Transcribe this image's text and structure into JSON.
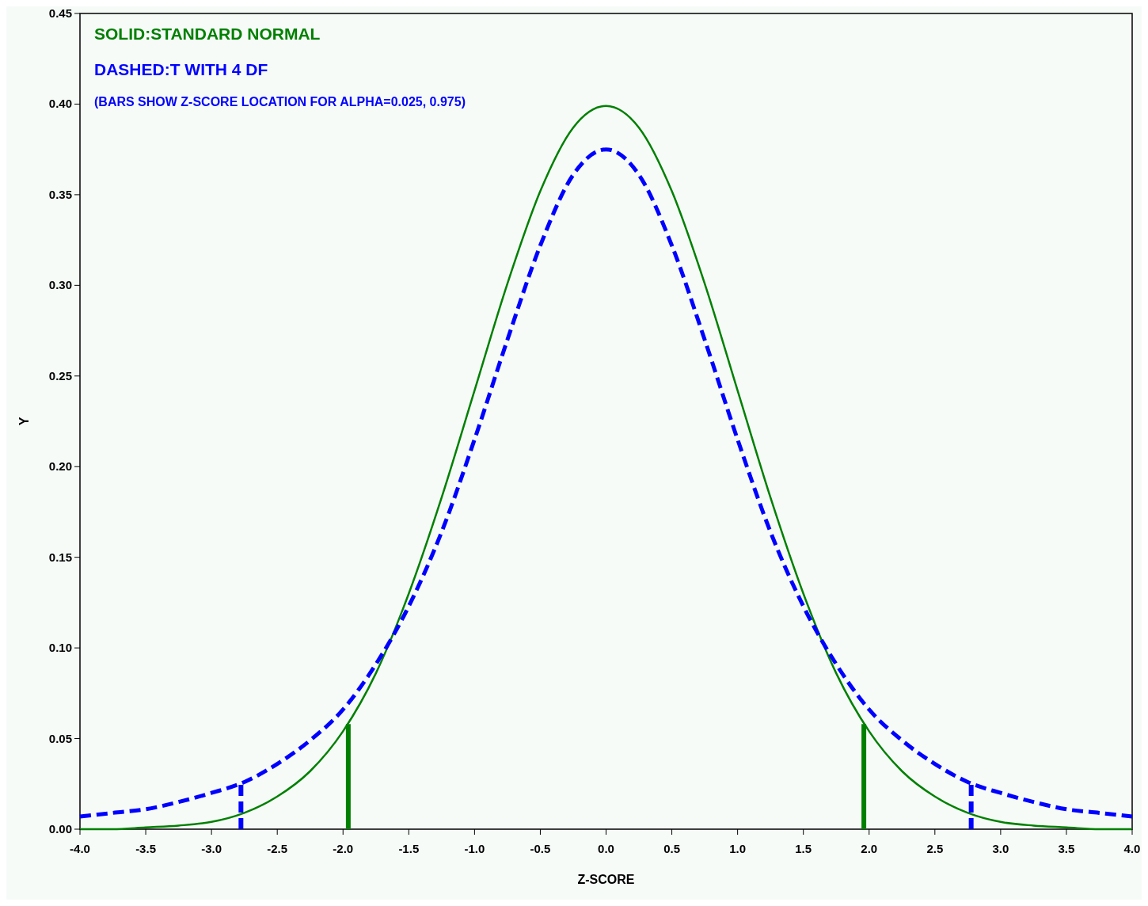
{
  "chart_data": {
    "type": "line",
    "xlabel": "Z-SCORE",
    "ylabel": "Y",
    "xlim": [
      -4,
      4
    ],
    "ylim": [
      0,
      0.45
    ],
    "xticks": [
      {
        "value": -4,
        "label": "-4.0"
      },
      {
        "value": -3.5,
        "label": "-3.5"
      },
      {
        "value": -3,
        "label": "-3.0"
      },
      {
        "value": -2.5,
        "label": "-2.5"
      },
      {
        "value": -2,
        "label": "-2.0"
      },
      {
        "value": -1.5,
        "label": "-1.5"
      },
      {
        "value": -1,
        "label": "-1.0"
      },
      {
        "value": -0.5,
        "label": "-0.5"
      },
      {
        "value": 0,
        "label": "0.0"
      },
      {
        "value": 0.5,
        "label": "0.5"
      },
      {
        "value": 1,
        "label": "1.0"
      },
      {
        "value": 1.5,
        "label": "1.5"
      },
      {
        "value": 2,
        "label": "2.0"
      },
      {
        "value": 2.5,
        "label": "2.5"
      },
      {
        "value": 3,
        "label": "3.0"
      },
      {
        "value": 3.5,
        "label": "3.5"
      },
      {
        "value": 4,
        "label": "4.0"
      }
    ],
    "yticks": [
      {
        "value": 0,
        "label": "0.00"
      },
      {
        "value": 0.05,
        "label": "0.05"
      },
      {
        "value": 0.1,
        "label": "0.10"
      },
      {
        "value": 0.15,
        "label": "0.15"
      },
      {
        "value": 0.2,
        "label": "0.20"
      },
      {
        "value": 0.25,
        "label": "0.25"
      },
      {
        "value": 0.3,
        "label": "0.30"
      },
      {
        "value": 0.35,
        "label": "0.35"
      },
      {
        "value": 0.4,
        "label": "0.40"
      },
      {
        "value": 0.45,
        "label": "0.45"
      }
    ],
    "grid": false,
    "marker": "none",
    "annotations": [
      "SOLID:STANDARD NORMAL",
      "DASHED:T WITH 4 DF",
      "(BARS SHOW Z-SCORE LOCATION FOR ALPHA=0.025, 0.975)"
    ],
    "series": [
      {
        "color": "#008000",
        "line_style": "solid",
        "x": [
          -4,
          -3.75,
          -3.5,
          -3.25,
          -3,
          -2.75,
          -2.5,
          -2.25,
          -2,
          -1.75,
          -1.5,
          -1.25,
          -1,
          -0.75,
          -0.5,
          -0.25,
          0,
          0.25,
          0.5,
          0.75,
          1,
          1.25,
          1.5,
          1.75,
          2,
          2.25,
          2.5,
          2.75,
          3,
          3.25,
          3.5,
          3.75,
          4
        ],
        "values": [
          0.0,
          0.0,
          0.001,
          0.002,
          0.004,
          0.009,
          0.018,
          0.032,
          0.054,
          0.086,
          0.13,
          0.183,
          0.242,
          0.301,
          0.352,
          0.387,
          0.399,
          0.387,
          0.352,
          0.301,
          0.242,
          0.183,
          0.13,
          0.086,
          0.054,
          0.032,
          0.018,
          0.009,
          0.004,
          0.002,
          0.001,
          0.0,
          0.0
        ]
      },
      {
        "color": "#0000ff",
        "line_style": "dashed",
        "x": [
          -4,
          -3.75,
          -3.5,
          -3.25,
          -3,
          -2.75,
          -2.5,
          -2.25,
          -2,
          -1.75,
          -1.5,
          -1.25,
          -1,
          -0.75,
          -0.5,
          -0.25,
          0,
          0.25,
          0.5,
          0.75,
          1,
          1.25,
          1.5,
          1.75,
          2,
          2.25,
          2.5,
          2.75,
          3,
          3.25,
          3.5,
          3.75,
          4
        ],
        "values": [
          0.007,
          0.009,
          0.011,
          0.015,
          0.02,
          0.026,
          0.036,
          0.049,
          0.066,
          0.091,
          0.123,
          0.164,
          0.215,
          0.27,
          0.322,
          0.361,
          0.375,
          0.361,
          0.322,
          0.27,
          0.215,
          0.164,
          0.123,
          0.091,
          0.066,
          0.049,
          0.036,
          0.026,
          0.02,
          0.015,
          0.011,
          0.009,
          0.007
        ]
      },
      {
        "color": "#008000",
        "line_style": "solid",
        "x": [
          -1.96,
          -1.96
        ],
        "values": [
          0,
          0.058
        ]
      },
      {
        "color": "#008000",
        "line_style": "solid",
        "x": [
          1.96,
          1.96
        ],
        "values": [
          0,
          0.058
        ]
      },
      {
        "color": "#0000ff",
        "line_style": "dashed",
        "x": [
          -2.776,
          -2.776
        ],
        "values": [
          0,
          0.025
        ]
      },
      {
        "color": "#0000ff",
        "line_style": "dashed",
        "x": [
          2.776,
          2.776
        ],
        "values": [
          0,
          0.025
        ]
      }
    ]
  }
}
